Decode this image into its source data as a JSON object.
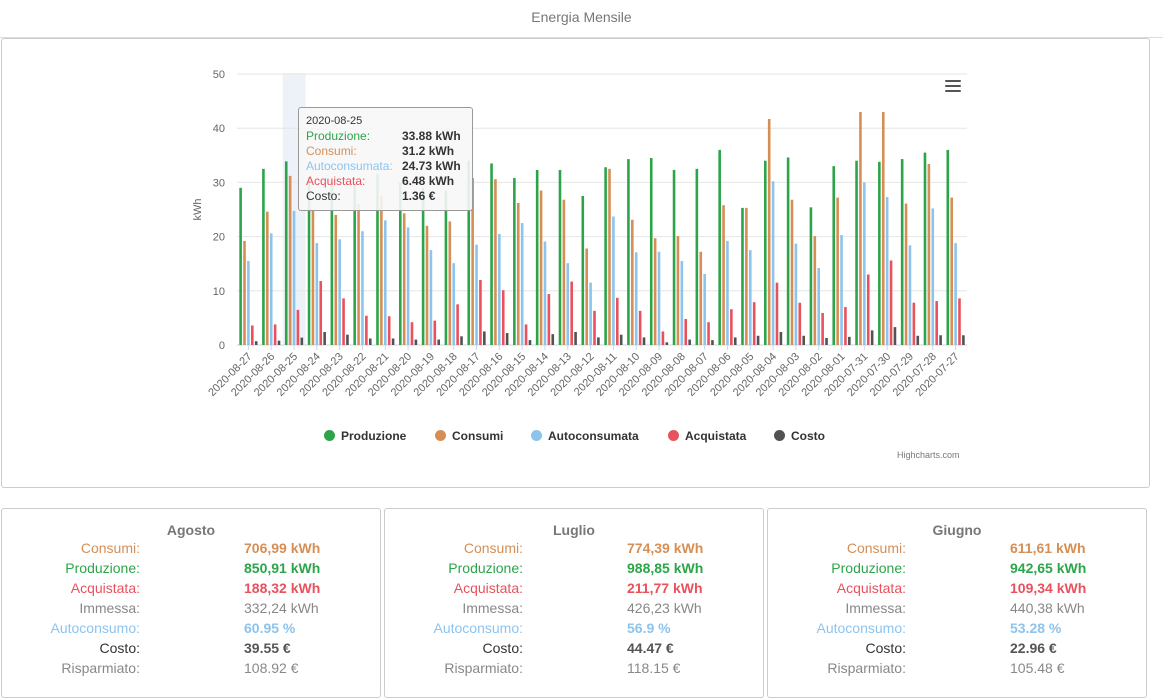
{
  "header": {
    "title": "Energia Mensile"
  },
  "colors": {
    "produzione": "#2ca54a",
    "consumi": "#d58f56",
    "autoconsumata": "#8dc4ee",
    "acquistata": "#e9515c",
    "costo": "#525252",
    "immessa": "#888888",
    "neutral": "#555555"
  },
  "chart_data": {
    "type": "bar",
    "ylabel": "kWh",
    "ylim": [
      0,
      50
    ],
    "yticks": [
      "0",
      "10",
      "20",
      "30",
      "40",
      "50"
    ],
    "grid": true,
    "legend_position": "bottom-center",
    "categories": [
      "2020-08-27",
      "2020-08-26",
      "2020-08-25",
      "2020-08-24",
      "2020-08-23",
      "2020-08-22",
      "2020-08-21",
      "2020-08-20",
      "2020-08-19",
      "2020-08-18",
      "2020-08-17",
      "2020-08-16",
      "2020-08-15",
      "2020-08-14",
      "2020-08-13",
      "2020-08-12",
      "2020-08-11",
      "2020-08-10",
      "2020-08-09",
      "2020-08-08",
      "2020-08-07",
      "2020-08-06",
      "2020-08-05",
      "2020-08-04",
      "2020-08-03",
      "2020-08-02",
      "2020-08-01",
      "2020-07-31",
      "2020-07-30",
      "2020-07-29",
      "2020-07-28",
      "2020-07-27"
    ],
    "series": [
      {
        "name": "Produzione",
        "color": "#2ca54a",
        "values": [
          29.0,
          32.5,
          33.88,
          31.0,
          30.5,
          30.0,
          31.5,
          30.0,
          29.0,
          28.5,
          34.0,
          33.5,
          30.8,
          32.3,
          32.3,
          27.5,
          32.8,
          34.3,
          34.5,
          32.3,
          32.5,
          36.0,
          25.3,
          34.0,
          34.6,
          25.4,
          33.0,
          34.0,
          33.8,
          34.3,
          35.5,
          36.0
        ]
      },
      {
        "name": "Consumi",
        "color": "#d58f56",
        "values": [
          19.2,
          24.6,
          31.2,
          25.0,
          24.0,
          26.0,
          27.5,
          24.3,
          22.0,
          22.8,
          30.8,
          30.6,
          26.2,
          28.5,
          26.8,
          17.8,
          32.5,
          23.1,
          19.7,
          20.1,
          17.2,
          25.8,
          25.3,
          41.7,
          26.8,
          20.1,
          27.2,
          43.0,
          43.0,
          26.1,
          33.4,
          27.2
        ]
      },
      {
        "name": "Autoconsumata",
        "color": "#8dc4ee",
        "values": [
          15.5,
          20.6,
          24.73,
          18.8,
          19.5,
          21.0,
          23.0,
          21.7,
          17.5,
          15.1,
          18.5,
          20.5,
          22.5,
          19.1,
          15.1,
          11.5,
          23.7,
          17.1,
          17.2,
          15.5,
          13.1,
          19.2,
          17.5,
          30.2,
          18.7,
          14.2,
          20.3,
          30.0,
          27.3,
          18.4,
          25.2,
          18.8
        ]
      },
      {
        "name": "Acquistata",
        "color": "#e9515c",
        "values": [
          3.6,
          3.8,
          6.48,
          11.8,
          8.6,
          5.4,
          5.3,
          4.2,
          4.5,
          7.5,
          12.0,
          10.1,
          3.8,
          9.4,
          11.7,
          6.3,
          8.7,
          6.3,
          2.5,
          4.8,
          4.2,
          6.6,
          7.9,
          11.5,
          7.8,
          5.9,
          7.0,
          13.0,
          15.6,
          7.8,
          8.1,
          8.6
        ]
      },
      {
        "name": "Costo",
        "color": "#525252",
        "values": [
          0.7,
          0.8,
          1.36,
          2.4,
          1.9,
          1.2,
          1.2,
          1.0,
          1.0,
          1.6,
          2.5,
          2.2,
          0.9,
          2.0,
          2.4,
          1.4,
          1.9,
          1.4,
          0.5,
          1.0,
          0.9,
          1.4,
          1.7,
          2.4,
          1.7,
          1.3,
          1.5,
          2.7,
          3.3,
          1.7,
          1.8,
          1.8
        ]
      }
    ]
  },
  "menu": {
    "icon": "hamburger-menu-icon"
  },
  "tooltip": {
    "title": "2020-08-25",
    "rows": [
      {
        "name": "Produzione:",
        "value": "33.88 kWh",
        "color": "#2ca54a"
      },
      {
        "name": "Consumi:",
        "value": "31.2 kWh",
        "color": "#d58f56"
      },
      {
        "name": "Autoconsumata:",
        "value": "24.73 kWh",
        "color": "#8dc4ee"
      },
      {
        "name": "Acquistata:",
        "value": "6.48 kWh",
        "color": "#e9515c"
      },
      {
        "name": "Costo:",
        "value": "1.36 €",
        "color": "#333333"
      }
    ]
  },
  "credits": "Highcharts.com",
  "summary": {
    "labels": {
      "consumi": "Consumi:",
      "produzione": "Produzione:",
      "acquistata": "Acquistata:",
      "immessa": "Immessa:",
      "autoconsumo": "Autoconsumo:",
      "costo": "Costo:",
      "risparmiato": "Risparmiato:"
    },
    "months": [
      {
        "name": "Agosto",
        "consumi": "706,99 kWh",
        "produzione": "850,91 kWh",
        "acquistata": "188,32 kWh",
        "immessa": "332,24 kWh",
        "autoconsumo": "60.95 %",
        "costo": "39.55 €",
        "risparmiato": "108.92 €"
      },
      {
        "name": "Luglio",
        "consumi": "774,39 kWh",
        "produzione": "988,85 kWh",
        "acquistata": "211,77 kWh",
        "immessa": "426,23 kWh",
        "autoconsumo": "56.9 %",
        "costo": "44.47 €",
        "risparmiato": "118.15 €"
      },
      {
        "name": "Giugno",
        "consumi": "611,61 kWh",
        "produzione": "942,65 kWh",
        "acquistata": "109,34 kWh",
        "immessa": "440,38 kWh",
        "autoconsumo": "53.28 %",
        "costo": "22.96 €",
        "risparmiato": "105.48 €"
      }
    ]
  }
}
